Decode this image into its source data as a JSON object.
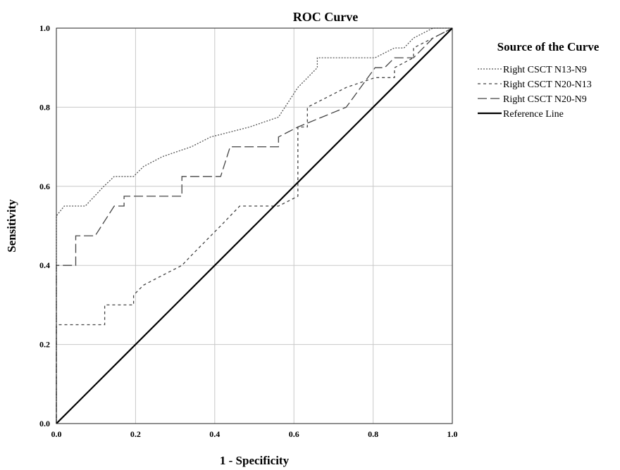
{
  "chart_data": {
    "type": "line",
    "title": "ROC Curve",
    "xlabel": "1 - Specificity",
    "ylabel": "Sensitivity",
    "xlim": [
      0,
      1
    ],
    "ylim": [
      0,
      1
    ],
    "xticks": [
      "0.0",
      "0.2",
      "0.4",
      "0.6",
      "0.8",
      "1.0"
    ],
    "yticks": [
      "0.0",
      "0.2",
      "0.4",
      "0.6",
      "0.8",
      "1.0"
    ],
    "grid": true,
    "legend_title": "Source of the Curve",
    "legend_position": "right",
    "series": [
      {
        "name": "Right CSCT N13-N9",
        "style": "dotted",
        "color": "#555555",
        "points": [
          [
            0,
            0
          ],
          [
            0,
            0.525
          ],
          [
            0.02,
            0.55
          ],
          [
            0.073,
            0.55
          ],
          [
            0.12,
            0.6
          ],
          [
            0.146,
            0.625
          ],
          [
            0.195,
            0.625
          ],
          [
            0.22,
            0.65
          ],
          [
            0.268,
            0.675
          ],
          [
            0.341,
            0.7
          ],
          [
            0.39,
            0.725
          ],
          [
            0.488,
            0.75
          ],
          [
            0.561,
            0.775
          ],
          [
            0.61,
            0.85
          ],
          [
            0.659,
            0.9
          ],
          [
            0.659,
            0.925
          ],
          [
            0.805,
            0.925
          ],
          [
            0.854,
            0.95
          ],
          [
            0.878,
            0.95
          ],
          [
            0.902,
            0.975
          ],
          [
            0.951,
            1.0
          ],
          [
            1.0,
            1.0
          ]
        ]
      },
      {
        "name": "Right CSCT N20-N13",
        "style": "short-dash",
        "color": "#444444",
        "points": [
          [
            0,
            0
          ],
          [
            0,
            0.25
          ],
          [
            0.122,
            0.25
          ],
          [
            0.122,
            0.3
          ],
          [
            0.195,
            0.3
          ],
          [
            0.195,
            0.325
          ],
          [
            0.22,
            0.35
          ],
          [
            0.268,
            0.375
          ],
          [
            0.317,
            0.4
          ],
          [
            0.341,
            0.425
          ],
          [
            0.39,
            0.475
          ],
          [
            0.415,
            0.5
          ],
          [
            0.439,
            0.525
          ],
          [
            0.463,
            0.55
          ],
          [
            0.561,
            0.55
          ],
          [
            0.61,
            0.575
          ],
          [
            0.61,
            0.75
          ],
          [
            0.634,
            0.75
          ],
          [
            0.634,
            0.8
          ],
          [
            0.683,
            0.825
          ],
          [
            0.732,
            0.85
          ],
          [
            0.805,
            0.875
          ],
          [
            0.854,
            0.875
          ],
          [
            0.854,
            0.9
          ],
          [
            0.902,
            0.925
          ],
          [
            0.902,
            0.95
          ],
          [
            0.951,
            0.975
          ],
          [
            1.0,
            1.0
          ]
        ]
      },
      {
        "name": "Right CSCT N20-N9",
        "style": "long-dash",
        "color": "#444444",
        "points": [
          [
            0,
            0
          ],
          [
            0,
            0.4
          ],
          [
            0.049,
            0.4
          ],
          [
            0.049,
            0.475
          ],
          [
            0.098,
            0.475
          ],
          [
            0.146,
            0.55
          ],
          [
            0.171,
            0.55
          ],
          [
            0.171,
            0.575
          ],
          [
            0.317,
            0.575
          ],
          [
            0.317,
            0.625
          ],
          [
            0.415,
            0.625
          ],
          [
            0.439,
            0.7
          ],
          [
            0.561,
            0.7
          ],
          [
            0.561,
            0.725
          ],
          [
            0.61,
            0.75
          ],
          [
            0.732,
            0.8
          ],
          [
            0.805,
            0.9
          ],
          [
            0.829,
            0.9
          ],
          [
            0.854,
            0.925
          ],
          [
            0.902,
            0.925
          ],
          [
            0.951,
            0.975
          ],
          [
            1.0,
            1.0
          ]
        ]
      },
      {
        "name": "Reference Line",
        "style": "solid",
        "color": "#000000",
        "points": [
          [
            0,
            0
          ],
          [
            1,
            1
          ]
        ]
      }
    ]
  }
}
